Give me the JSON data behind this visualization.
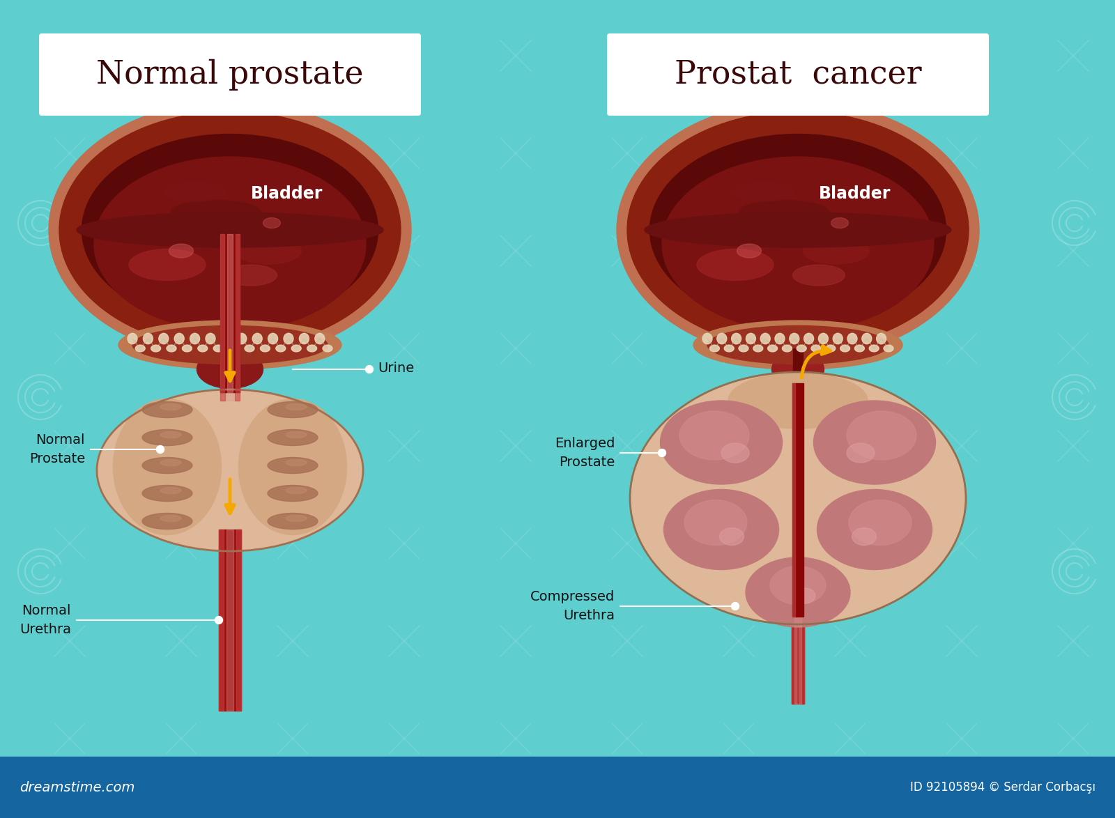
{
  "bg_color": "#5ecece",
  "footer_color": "#1565a0",
  "title_left": "Normal prostate",
  "title_right": "Prostat  cancer",
  "title_color": "#3a0808",
  "white": "#ffffff",
  "arrow_color": "#f5a800",
  "bladder_outer": "#c87050",
  "bladder_wall": "#8b2020",
  "bladder_inner_dark": "#5a0a0a",
  "bladder_inner_mid": "#7a1515",
  "bladder_inner_light": "#9a2525",
  "bladder_rim_color": "#e8d0b8",
  "prostate_bg": "#e8c5a8",
  "prostate_lobe": "#c87878",
  "prostate_lobe_dark": "#a85858",
  "prostate_lobe_highlight": "#d89090",
  "urethra_color": "#8b0a0a",
  "urethra_light": "#c03030",
  "neck_color": "#8b1818",
  "label_color": "#111111",
  "bladder_label_color": "#ffffff",
  "dreamstime": "dreamstime.com",
  "copyright": "ID 92105894 © Serdar Corbacşı"
}
